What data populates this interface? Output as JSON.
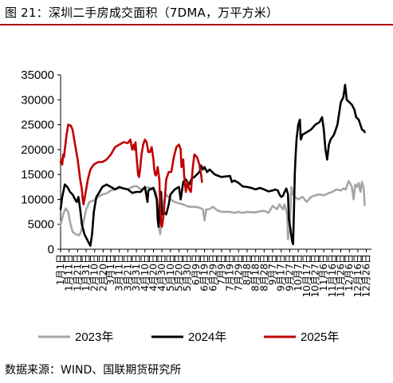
{
  "header": {
    "title": "图 21：深圳二手房成交面积（7DMA，万平方米）"
  },
  "footer": {
    "source": "数据来源：WIND、国联期货研究所"
  },
  "colors": {
    "y2023": "#a6a6a6",
    "y2024": "#000000",
    "y2025": "#c00000",
    "accent": "#b00000"
  },
  "chart_data": {
    "type": "line",
    "title": "深圳二手房成交面积（7DMA，万平方米）",
    "xlabel": "",
    "ylabel": "",
    "ylim": [
      0,
      35000
    ],
    "yticks": [
      "0",
      "5000",
      "10000",
      "15000",
      "20000",
      "25000",
      "30000",
      "35000"
    ],
    "xticks": [
      "1月1日",
      "1月11日",
      "1月21日",
      "1月31日",
      "2月10日",
      "2月20日",
      "3月1日",
      "3月11日",
      "3月21日",
      "3月31日",
      "4月10日",
      "4月20日",
      "4月30日",
      "5月10日",
      "5月20日",
      "5月30日",
      "6月9日",
      "6月19日",
      "6月29日",
      "7月9日",
      "7月19日",
      "7月29日",
      "8月8日",
      "8月18日",
      "8月28日",
      "9月7日",
      "9月17日",
      "9月27日",
      "10月7日",
      "10月17日",
      "10月27日",
      "11月6日",
      "11月16日",
      "11月26日",
      "12月6日",
      "12月16日",
      "12月26日"
    ],
    "xtick_days": [
      1,
      11,
      21,
      31,
      41,
      51,
      60,
      70,
      80,
      90,
      100,
      110,
      120,
      130,
      140,
      150,
      160,
      170,
      180,
      190,
      200,
      210,
      220,
      230,
      240,
      250,
      260,
      270,
      280,
      290,
      300,
      310,
      320,
      330,
      340,
      350,
      360
    ],
    "legend": "bottom",
    "grid": false,
    "series": [
      {
        "name": "2023年",
        "color": "#a6a6a6",
        "points": [
          [
            1,
            4800
          ],
          [
            4,
            7000
          ],
          [
            7,
            8200
          ],
          [
            10,
            7500
          ],
          [
            12,
            5500
          ],
          [
            15,
            3500
          ],
          [
            19,
            3000
          ],
          [
            23,
            2800
          ],
          [
            25,
            3500
          ],
          [
            28,
            5500
          ],
          [
            31,
            8000
          ],
          [
            35,
            9500
          ],
          [
            40,
            9800
          ],
          [
            45,
            10500
          ],
          [
            50,
            11000
          ],
          [
            55,
            11200
          ],
          [
            60,
            11800
          ],
          [
            65,
            12000
          ],
          [
            70,
            12300
          ],
          [
            75,
            12200
          ],
          [
            80,
            12000
          ],
          [
            85,
            12500
          ],
          [
            90,
            12700
          ],
          [
            95,
            12000
          ],
          [
            100,
            12300
          ],
          [
            105,
            12400
          ],
          [
            110,
            12000
          ],
          [
            113,
            11500
          ],
          [
            115,
            9000
          ],
          [
            117,
            4000
          ],
          [
            118,
            3000
          ],
          [
            119,
            5500
          ],
          [
            121,
            9000
          ],
          [
            125,
            11000
          ],
          [
            130,
            10000
          ],
          [
            135,
            9500
          ],
          [
            140,
            9200
          ],
          [
            145,
            9000
          ],
          [
            150,
            8600
          ],
          [
            155,
            8500
          ],
          [
            160,
            8500
          ],
          [
            165,
            8300
          ],
          [
            168,
            8000
          ],
          [
            170,
            5800
          ],
          [
            172,
            8000
          ],
          [
            175,
            8000
          ],
          [
            180,
            8500
          ],
          [
            185,
            7800
          ],
          [
            190,
            7500
          ],
          [
            195,
            7500
          ],
          [
            200,
            7500
          ],
          [
            205,
            7300
          ],
          [
            210,
            7500
          ],
          [
            215,
            7300
          ],
          [
            220,
            7500
          ],
          [
            225,
            7400
          ],
          [
            230,
            7400
          ],
          [
            235,
            7600
          ],
          [
            240,
            7700
          ],
          [
            245,
            7300
          ],
          [
            250,
            8700
          ],
          [
            255,
            8000
          ],
          [
            258,
            9000
          ],
          [
            262,
            8000
          ],
          [
            264,
            9000
          ],
          [
            267,
            7000
          ],
          [
            268,
            2000
          ],
          [
            270,
            5000
          ],
          [
            272,
            12500
          ],
          [
            274,
            11000
          ],
          [
            276,
            10500
          ],
          [
            280,
            10000
          ],
          [
            285,
            10500
          ],
          [
            290,
            9500
          ],
          [
            295,
            10500
          ],
          [
            300,
            10800
          ],
          [
            305,
            11000
          ],
          [
            310,
            10800
          ],
          [
            315,
            11200
          ],
          [
            320,
            11500
          ],
          [
            325,
            12000
          ],
          [
            330,
            11800
          ],
          [
            333,
            12200
          ],
          [
            336,
            12000
          ],
          [
            339,
            13700
          ],
          [
            341,
            13200
          ],
          [
            343,
            12500
          ],
          [
            345,
            10000
          ],
          [
            347,
            13000
          ],
          [
            349,
            12500
          ],
          [
            351,
            13300
          ],
          [
            353,
            11500
          ],
          [
            355,
            13500
          ],
          [
            357,
            12000
          ],
          [
            358,
            8800
          ]
        ]
      },
      {
        "name": "2024年",
        "color": "#000000",
        "points": [
          [
            1,
            8000
          ],
          [
            3,
            10500
          ],
          [
            6,
            13000
          ],
          [
            9,
            12500
          ],
          [
            12,
            11500
          ],
          [
            15,
            11000
          ],
          [
            18,
            10000
          ],
          [
            20,
            9500
          ],
          [
            22,
            10500
          ],
          [
            24,
            8000
          ],
          [
            26,
            5000
          ],
          [
            29,
            3000
          ],
          [
            32,
            2000
          ],
          [
            35,
            1000
          ],
          [
            36,
            700
          ],
          [
            38,
            3000
          ],
          [
            40,
            7500
          ],
          [
            43,
            10500
          ],
          [
            45,
            11000
          ],
          [
            50,
            12500
          ],
          [
            55,
            13000
          ],
          [
            60,
            12500
          ],
          [
            65,
            12000
          ],
          [
            70,
            12500
          ],
          [
            75,
            12200
          ],
          [
            80,
            12000
          ],
          [
            85,
            11300
          ],
          [
            90,
            11500
          ],
          [
            95,
            11500
          ],
          [
            100,
            12500
          ],
          [
            102,
            10500
          ],
          [
            103,
            9500
          ],
          [
            104,
            11800
          ],
          [
            106,
            12000
          ],
          [
            110,
            12300
          ],
          [
            114,
            10000
          ],
          [
            115,
            6000
          ],
          [
            116,
            4500
          ],
          [
            118,
            11000
          ],
          [
            119,
            11500
          ],
          [
            120,
            7000
          ],
          [
            122,
            7500
          ],
          [
            125,
            7000
          ],
          [
            128,
            9000
          ],
          [
            130,
            11000
          ],
          [
            135,
            12000
          ],
          [
            140,
            12500
          ],
          [
            142,
            10000
          ],
          [
            145,
            13500
          ],
          [
            148,
            14000
          ],
          [
            152,
            13000
          ],
          [
            155,
            14200
          ],
          [
            158,
            14500
          ],
          [
            161,
            15000
          ],
          [
            164,
            15500
          ],
          [
            166,
            16800
          ],
          [
            168,
            16000
          ],
          [
            170,
            16500
          ],
          [
            173,
            15500
          ],
          [
            176,
            16000
          ],
          [
            179,
            15500
          ],
          [
            182,
            15000
          ],
          [
            185,
            14800
          ],
          [
            190,
            14500
          ],
          [
            195,
            14600
          ],
          [
            200,
            14700
          ],
          [
            202,
            13500
          ],
          [
            205,
            13800
          ],
          [
            210,
            13300
          ],
          [
            215,
            12600
          ],
          [
            220,
            12500
          ],
          [
            225,
            12300
          ],
          [
            230,
            12000
          ],
          [
            235,
            12300
          ],
          [
            240,
            12000
          ],
          [
            245,
            11600
          ],
          [
            250,
            11800
          ],
          [
            253,
            12000
          ],
          [
            256,
            11800
          ],
          [
            258,
            11000
          ],
          [
            260,
            10500
          ],
          [
            262,
            10700
          ],
          [
            264,
            11500
          ],
          [
            266,
            12200
          ],
          [
            268,
            11000
          ],
          [
            269,
            6000
          ],
          [
            271,
            4000
          ],
          [
            272,
            2500
          ],
          [
            273,
            1500
          ],
          [
            274,
            1000
          ],
          [
            275,
            8000
          ],
          [
            276,
            15000
          ],
          [
            277,
            19000
          ],
          [
            278,
            22000
          ],
          [
            280,
            25000
          ],
          [
            282,
            26000
          ],
          [
            283,
            22000
          ],
          [
            285,
            23000
          ],
          [
            290,
            23500
          ],
          [
            295,
            24000
          ],
          [
            300,
            25000
          ],
          [
            305,
            25500
          ],
          [
            308,
            26500
          ],
          [
            310,
            24000
          ],
          [
            312,
            20000
          ],
          [
            313,
            19000
          ],
          [
            314,
            18000
          ],
          [
            316,
            21000
          ],
          [
            318,
            22000
          ],
          [
            322,
            23000
          ],
          [
            326,
            25000
          ],
          [
            330,
            29500
          ],
          [
            333,
            30500
          ],
          [
            335,
            33000
          ],
          [
            337,
            30000
          ],
          [
            340,
            29500
          ],
          [
            343,
            29000
          ],
          [
            346,
            28000
          ],
          [
            348,
            26500
          ],
          [
            351,
            26000
          ],
          [
            353,
            25000
          ],
          [
            355,
            24000
          ],
          [
            357,
            23800
          ],
          [
            358,
            23500
          ]
        ]
      },
      {
        "name": "2025年",
        "color": "#c00000",
        "points": [
          [
            1,
            17500
          ],
          [
            2,
            18000
          ],
          [
            3,
            17000
          ],
          [
            4,
            19000
          ],
          [
            5,
            18500
          ],
          [
            6,
            20000
          ],
          [
            8,
            23000
          ],
          [
            10,
            25000
          ],
          [
            13,
            24800
          ],
          [
            15,
            24000
          ],
          [
            18,
            21000
          ],
          [
            21,
            18000
          ],
          [
            24,
            14000
          ],
          [
            26,
            12000
          ],
          [
            27,
            10000
          ],
          [
            28,
            9000
          ],
          [
            30,
            11000
          ],
          [
            33,
            14000
          ],
          [
            36,
            16000
          ],
          [
            40,
            17000
          ],
          [
            45,
            17500
          ],
          [
            50,
            17500
          ],
          [
            55,
            18000
          ],
          [
            60,
            19000
          ],
          [
            65,
            20500
          ],
          [
            70,
            21000
          ],
          [
            75,
            21500
          ],
          [
            80,
            21300
          ],
          [
            83,
            22000
          ],
          [
            85,
            20000
          ],
          [
            87,
            21000
          ],
          [
            88,
            20000
          ],
          [
            89,
            21500
          ],
          [
            90,
            19000
          ],
          [
            91,
            17000
          ],
          [
            92,
            15000
          ],
          [
            93,
            14500
          ],
          [
            94,
            15500
          ],
          [
            96,
            19000
          ],
          [
            98,
            21000
          ],
          [
            100,
            22000
          ],
          [
            102,
            21500
          ],
          [
            104,
            19500
          ],
          [
            106,
            19500
          ],
          [
            108,
            20500
          ],
          [
            110,
            18000
          ],
          [
            111,
            16000
          ],
          [
            112,
            15000
          ],
          [
            113,
            14800
          ],
          [
            115,
            16500
          ],
          [
            117,
            14000
          ],
          [
            118,
            8000
          ],
          [
            119,
            5000
          ],
          [
            120,
            4500
          ],
          [
            122,
            7000
          ],
          [
            125,
            14000
          ],
          [
            128,
            15500
          ],
          [
            131,
            15500
          ],
          [
            134,
            18500
          ],
          [
            137,
            20500
          ],
          [
            140,
            21000
          ],
          [
            142,
            20000
          ],
          [
            143,
            16500
          ],
          [
            145,
            18000
          ],
          [
            146,
            15000
          ],
          [
            148,
            11500
          ],
          [
            150,
            13500
          ],
          [
            152,
            12000
          ],
          [
            154,
            11500
          ],
          [
            156,
            16000
          ],
          [
            158,
            19000
          ],
          [
            161,
            18500
          ],
          [
            164,
            17000
          ],
          [
            166,
            15000
          ],
          [
            167,
            13500
          ]
        ]
      }
    ]
  }
}
